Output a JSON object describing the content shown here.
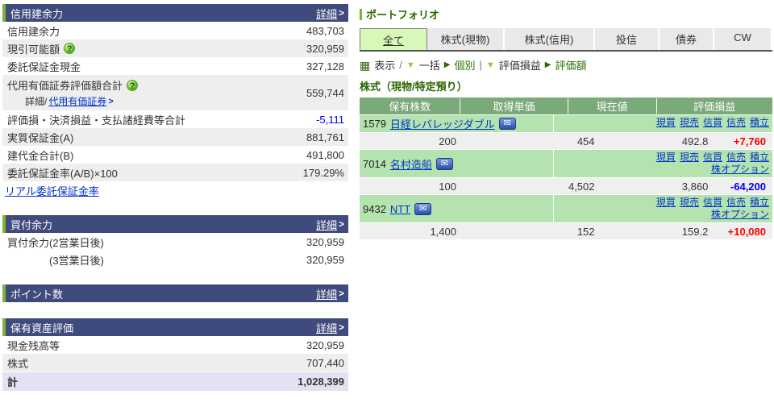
{
  "colors": {
    "section_header_bg": "#3f4a7d",
    "accent_green": "#7db23c",
    "table_header_green": "#7aa97a",
    "stock_name_row_green": "#b4e3af",
    "alt_row_gray": "#eeeeee",
    "data_row_gray": "#efefef",
    "total_row_lavender": "#e2e2f2",
    "link_blue": "#0033cc",
    "profit_red": "#ff0000",
    "loss_blue": "#0000ee",
    "tab_selected_bg": "#d9f7b7",
    "dark_green_text": "#2a6600"
  },
  "left_panel": {
    "sections": [
      {
        "title": "信用建余力",
        "detail_label": "詳細",
        "rows": [
          {
            "label": "信用建余力",
            "value": "483,703"
          },
          {
            "label": "現引可能額",
            "value": "320,959"
          },
          {
            "label": "委託保証金現金",
            "value": "327,128"
          },
          {
            "label": "代用有価証券評価額合計",
            "value": "559,744",
            "sub_prefix": "詳細/",
            "sub_link": "代用有価証券"
          },
          {
            "label": "評価損・決済損益・支払諸経費等合計",
            "value": "-5,111"
          },
          {
            "label": "実質保証金(A)",
            "value": "881,761"
          },
          {
            "label": "建代金合計(B)",
            "value": "491,800"
          },
          {
            "label": "委託保証金率(A/B)×100",
            "value": "179.29%"
          }
        ],
        "footer_link": "リアル委託保証金率"
      },
      {
        "title": "買付余力",
        "detail_label": "詳細",
        "rows": [
          {
            "label": "買付余力(2営業日後)",
            "value": "320,959"
          },
          {
            "label": "(3営業日後)",
            "value": "320,959"
          }
        ]
      },
      {
        "title": "ポイント数",
        "detail_label": "詳細"
      },
      {
        "title": "保有資産評価",
        "detail_label": "詳細",
        "rows": [
          {
            "label": "現金残高等",
            "value": "320,959"
          },
          {
            "label": "株式",
            "value": "707,440"
          }
        ],
        "total": {
          "label": "計",
          "value": "1,028,399"
        }
      }
    ]
  },
  "portfolio": {
    "title": "ポートフォリオ",
    "tabs": [
      {
        "label": "全て",
        "selected": true
      },
      {
        "label": "株式(現物)",
        "selected": false
      },
      {
        "label": "株式(信用)",
        "selected": false
      },
      {
        "label": "投信",
        "selected": false
      },
      {
        "label": "債券",
        "selected": false
      },
      {
        "label": "CW",
        "selected": false
      }
    ],
    "toolbar": {
      "display_label": "表示",
      "group1_selected": "一括",
      "group1_alt": "個別",
      "group2_selected": "評価損益",
      "group2_alt": "評価額"
    },
    "section_title": "株式（現物/特定預り）",
    "table": {
      "headers": [
        "保有株数",
        "取得単価",
        "現在値",
        "評価損益"
      ],
      "action_links": [
        "現買",
        "現売",
        "信買",
        "信売",
        "積立"
      ],
      "option_link": "株オプション",
      "stocks": [
        {
          "code": "1579",
          "name": "日経レバレッジダブル",
          "shares": "200",
          "cost": "454",
          "price": "492.8",
          "pl": "+7,760"
        },
        {
          "code": "7014",
          "name": "名村造船",
          "shares": "100",
          "cost": "4,502",
          "price": "3,860",
          "pl": "-64,200"
        },
        {
          "code": "9432",
          "name": "NTT",
          "shares": "1,400",
          "cost": "152",
          "price": "159.2",
          "pl": "+10,080"
        }
      ]
    }
  }
}
